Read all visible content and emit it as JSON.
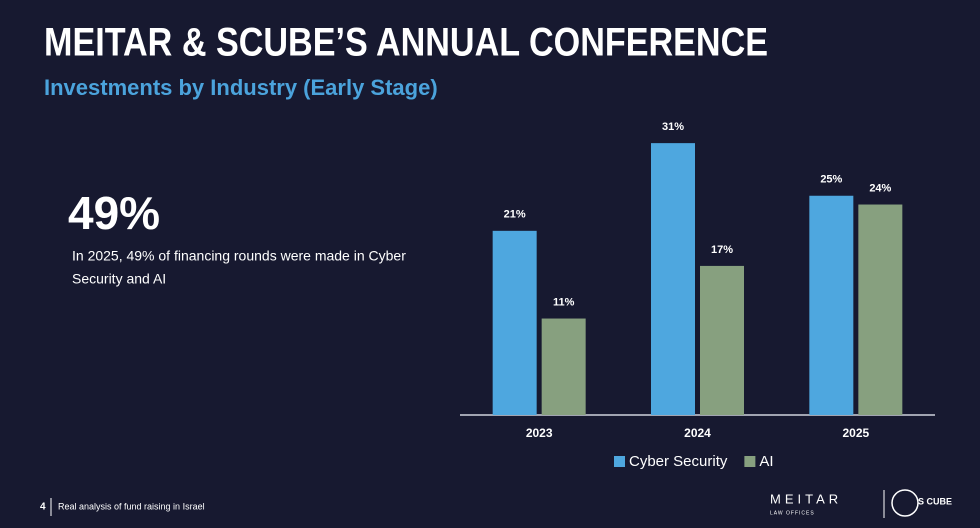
{
  "slide": {
    "title": "MEITAR & SCUBE’S ANNUAL CONFERENCE",
    "stat": "49%",
    "stat_text": [
      "In 2025, 49% of financing rounds were made in Cyber",
      "Security and AI"
    ],
    "page_number": "4",
    "footer": "Real analysis of fund raising in Israel",
    "logos": [
      "MEITAR",
      "LAW OFFICES",
      "S CUBE"
    ]
  },
  "chart_data": {
    "type": "bar",
    "title": "Investments by Industry (Early Stage)",
    "categories": [
      "2023",
      "2024",
      "2025"
    ],
    "series": [
      {
        "name": "Cyber Security",
        "color": "#4ea7df",
        "values": [
          21,
          31,
          25
        ],
        "value_labels": [
          "21%",
          "31%",
          "25%"
        ]
      },
      {
        "name": "AI",
        "color": "#87a07f",
        "values": [
          11,
          17,
          24
        ],
        "value_labels": [
          "11%",
          "17%",
          "24%"
        ]
      }
    ],
    "legend": "bottom"
  }
}
